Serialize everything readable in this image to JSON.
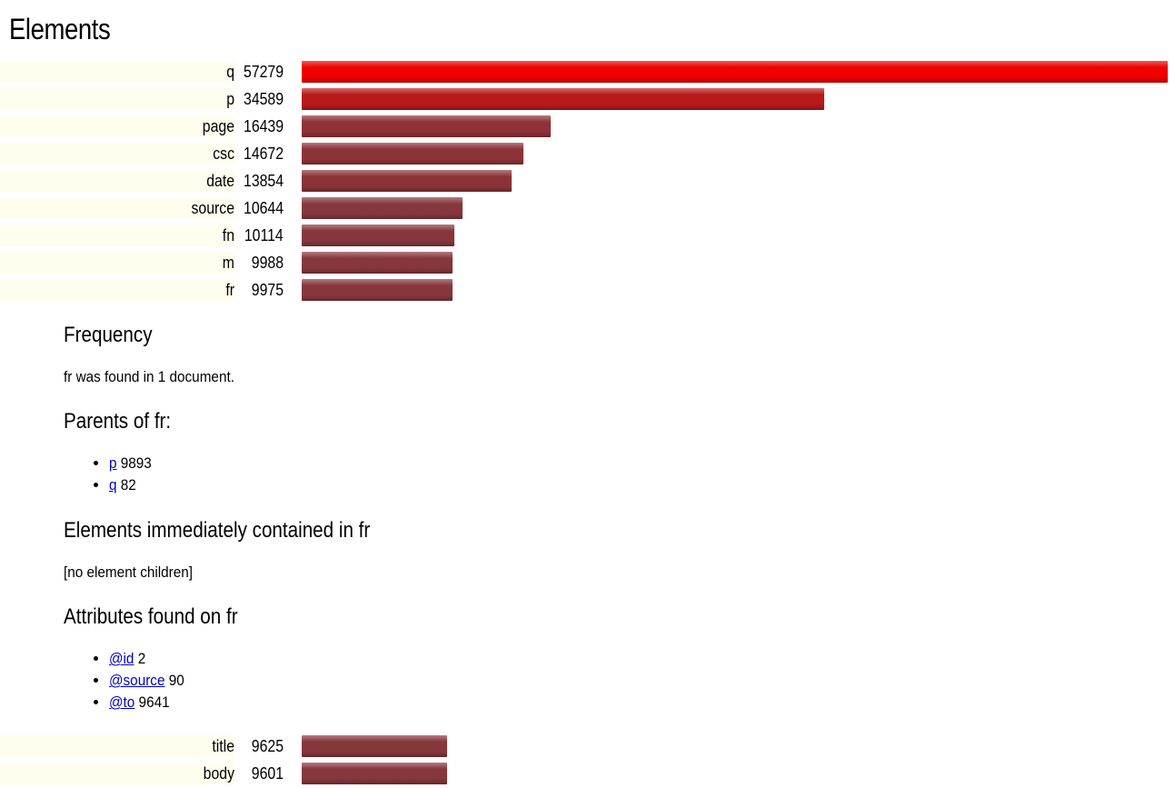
{
  "page": {
    "title": "Elements"
  },
  "bar_scale_max": 57279,
  "rows_top": [
    {
      "name": "q",
      "count": "57279",
      "value": 57279,
      "color": "#ee0000"
    },
    {
      "name": "p",
      "count": "34589",
      "value": 34589,
      "color": "#b81a1a"
    },
    {
      "name": "page",
      "count": "16439",
      "value": 16439,
      "color": "#8f3136"
    },
    {
      "name": "csc",
      "count": "14672",
      "value": 14672,
      "color": "#8c3338"
    },
    {
      "name": "date",
      "count": "13854",
      "value": 13854,
      "color": "#8a3439"
    },
    {
      "name": "source",
      "count": "10644",
      "value": 10644,
      "color": "#86373c"
    },
    {
      "name": "fn",
      "count": "10114",
      "value": 10114,
      "color": "#86373c"
    },
    {
      "name": "m",
      "count": "9988",
      "value": 9988,
      "color": "#86373c"
    },
    {
      "name": "fr",
      "count": "9975",
      "value": 9975,
      "color": "#86373c"
    }
  ],
  "details": {
    "frequency_heading": "Frequency",
    "frequency_text": "fr was found in 1 document.",
    "parents_heading": "Parents of fr:",
    "parents": [
      {
        "link": "p",
        "count": "9893"
      },
      {
        "link": "q",
        "count": "82"
      }
    ],
    "children_heading": "Elements immediately contained in fr",
    "children_text": "[no element children]",
    "attributes_heading": "Attributes found on fr",
    "attributes": [
      {
        "link": "@id",
        "count": "2"
      },
      {
        "link": "@source",
        "count": "90"
      },
      {
        "link": "@to",
        "count": "9641"
      }
    ]
  },
  "rows_bottom": [
    {
      "name": "title",
      "count": "9625",
      "value": 9625,
      "color": "#86373c"
    },
    {
      "name": "body",
      "count": "9601",
      "value": 9601,
      "color": "#86373c"
    }
  ]
}
